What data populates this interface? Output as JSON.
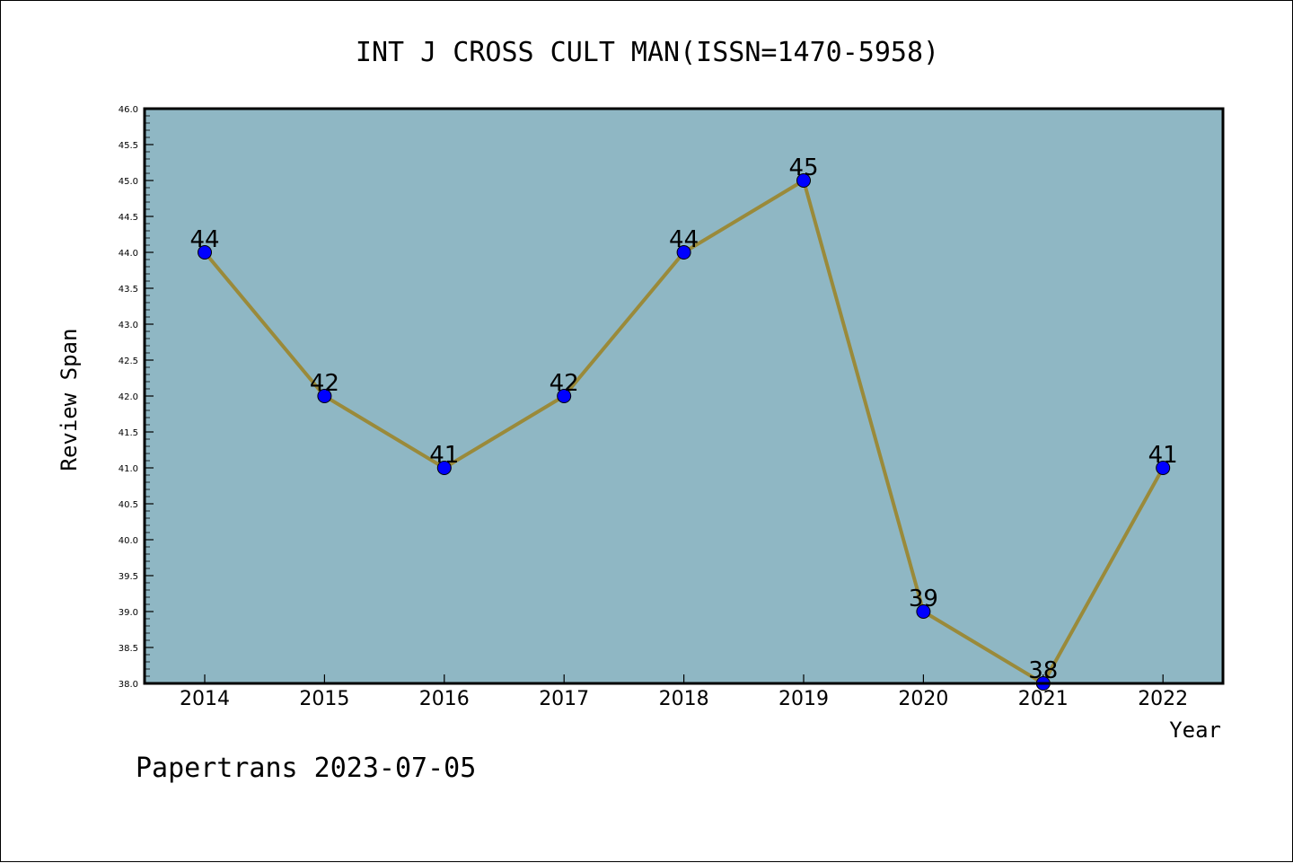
{
  "chart_data": {
    "type": "line",
    "title": "INT J CROSS CULT MAN(ISSN=1470-5958)",
    "xlabel": "Year",
    "ylabel": "Review Span",
    "categories": [
      "2014",
      "2015",
      "2016",
      "2017",
      "2018",
      "2019",
      "2020",
      "2021",
      "2022"
    ],
    "values": [
      44,
      42,
      41,
      42,
      44,
      45,
      39,
      38,
      41
    ],
    "data_labels": [
      "44",
      "42",
      "41",
      "42",
      "44",
      "45",
      "39",
      "38",
      "41"
    ],
    "ylim": [
      38.0,
      46.0
    ],
    "yticks": [
      "38.0",
      "38.5",
      "39.0",
      "39.5",
      "40.0",
      "40.5",
      "41.0",
      "41.5",
      "42.0",
      "42.5",
      "43.0",
      "43.5",
      "44.0",
      "44.5",
      "45.0",
      "45.5",
      "46.0"
    ],
    "grid": false,
    "colors": {
      "plot_background": "#8fb7c4",
      "line": "#9a8a3a",
      "marker": "#0000ff"
    }
  },
  "footer": {
    "text": "Papertrans 2023-07-05"
  }
}
